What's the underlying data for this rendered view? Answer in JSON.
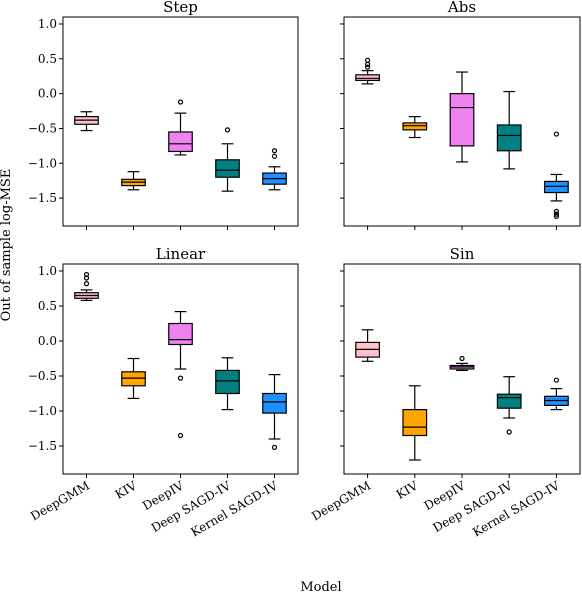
{
  "chart_data": {
    "type": "box",
    "xlabel": "Model",
    "ylabel": "Out of sample log-MSE",
    "categories": [
      "DeepGMM",
      "KIV",
      "DeepIV",
      "Deep SAGD-IV",
      "Kernel SAGD-IV"
    ],
    "colors": [
      "#ffc0cb",
      "#ffa500",
      "#ee82ee",
      "#008080",
      "#1e90ff"
    ],
    "yticks": [
      1.0,
      0.5,
      0.0,
      -0.5,
      -1.0,
      -1.5
    ],
    "ytick_labels": [
      "1.0",
      "0.5",
      "0.0",
      "−0.5",
      "−1.0",
      "−1.5"
    ],
    "ylim": [
      -1.9,
      1.1
    ],
    "grid": false,
    "sharey": true,
    "panels": [
      {
        "title": "Step",
        "boxes": [
          {
            "whislo": -0.53,
            "q1": -0.44,
            "med": -0.38,
            "q3": -0.33,
            "whishi": -0.26,
            "fliers": []
          },
          {
            "whislo": -1.38,
            "q1": -1.32,
            "med": -1.27,
            "q3": -1.23,
            "whishi": -1.12,
            "fliers": []
          },
          {
            "whislo": -0.88,
            "q1": -0.83,
            "med": -0.72,
            "q3": -0.55,
            "whishi": -0.28,
            "fliers": [
              -0.12
            ]
          },
          {
            "whislo": -1.4,
            "q1": -1.2,
            "med": -1.1,
            "q3": -0.95,
            "whishi": -0.72,
            "fliers": [
              -0.52
            ]
          },
          {
            "whislo": -1.38,
            "q1": -1.3,
            "med": -1.22,
            "q3": -1.14,
            "whishi": -1.05,
            "fliers": [
              -0.82,
              -0.9
            ]
          }
        ]
      },
      {
        "title": "Abs",
        "boxes": [
          {
            "whislo": 0.14,
            "q1": 0.19,
            "med": 0.22,
            "q3": 0.27,
            "whishi": 0.33,
            "fliers": [
              0.38,
              0.42,
              0.48
            ]
          },
          {
            "whislo": -0.63,
            "q1": -0.52,
            "med": -0.46,
            "q3": -0.42,
            "whishi": -0.33,
            "fliers": []
          },
          {
            "whislo": -0.98,
            "q1": -0.75,
            "med": -0.2,
            "q3": 0.0,
            "whishi": 0.31,
            "fliers": []
          },
          {
            "whislo": -1.08,
            "q1": -0.82,
            "med": -0.6,
            "q3": -0.45,
            "whishi": 0.03,
            "fliers": []
          },
          {
            "whislo": -1.54,
            "q1": -1.42,
            "med": -1.33,
            "q3": -1.26,
            "whishi": -1.16,
            "fliers": [
              -0.58,
              -1.69,
              -1.73,
              -1.76
            ]
          }
        ]
      },
      {
        "title": "Linear",
        "boxes": [
          {
            "whislo": 0.58,
            "q1": 0.61,
            "med": 0.65,
            "q3": 0.69,
            "whishi": 0.73,
            "fliers": [
              0.82,
              0.9,
              0.95
            ]
          },
          {
            "whislo": -0.82,
            "q1": -0.64,
            "med": -0.53,
            "q3": -0.44,
            "whishi": -0.25,
            "fliers": []
          },
          {
            "whislo": -0.4,
            "q1": -0.05,
            "med": 0.02,
            "q3": 0.25,
            "whishi": 0.42,
            "fliers": [
              -0.53,
              -1.35
            ]
          },
          {
            "whislo": -0.98,
            "q1": -0.75,
            "med": -0.57,
            "q3": -0.42,
            "whishi": -0.24,
            "fliers": []
          },
          {
            "whislo": -1.4,
            "q1": -1.03,
            "med": -0.87,
            "q3": -0.75,
            "whishi": -0.48,
            "fliers": [
              -1.52
            ]
          }
        ]
      },
      {
        "title": "Sin",
        "boxes": [
          {
            "whislo": -0.29,
            "q1": -0.23,
            "med": -0.12,
            "q3": -0.02,
            "whishi": 0.16,
            "fliers": []
          },
          {
            "whislo": -1.7,
            "q1": -1.35,
            "med": -1.23,
            "q3": -0.98,
            "whishi": -0.64,
            "fliers": []
          },
          {
            "whislo": -0.42,
            "q1": -0.4,
            "med": -0.37,
            "q3": -0.35,
            "whishi": -0.32,
            "fliers": [
              -0.25
            ]
          },
          {
            "whislo": -1.1,
            "q1": -0.96,
            "med": -0.81,
            "q3": -0.76,
            "whishi": -0.51,
            "fliers": [
              -1.3
            ]
          },
          {
            "whislo": -0.98,
            "q1": -0.92,
            "med": -0.85,
            "q3": -0.79,
            "whishi": -0.68,
            "fliers": [
              -0.56
            ]
          }
        ]
      }
    ]
  }
}
